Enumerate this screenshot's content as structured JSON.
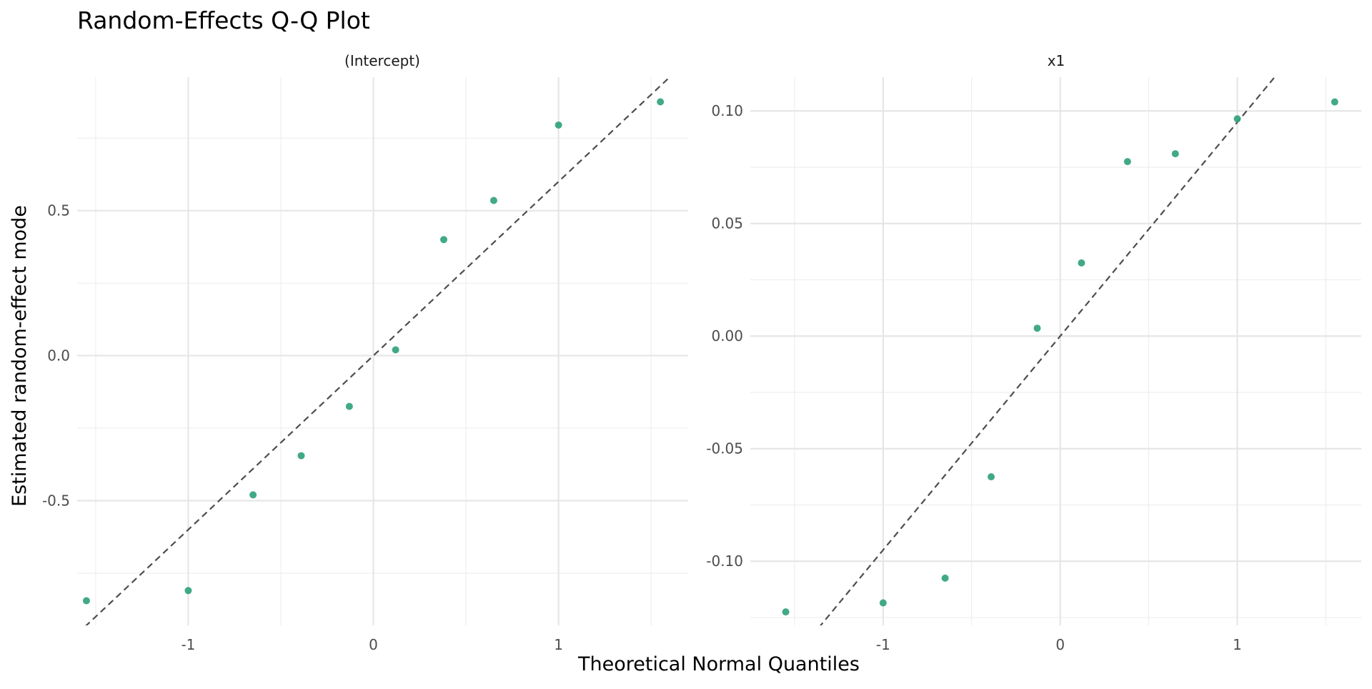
{
  "chart_data": {
    "type": "scatter",
    "title": "Random-Effects Q-Q Plot",
    "xlabel": "Theoretical Normal Quantiles",
    "ylabel": "Estimated random-effect mode",
    "point_color": "#2ca07a",
    "reference_line_color": "#4d4d4d",
    "panels": [
      {
        "name": "(Intercept)",
        "xlim": [
          -1.6,
          1.7
        ],
        "ylim": [
          -0.93,
          0.96
        ],
        "x_ticks": [
          -1,
          0,
          1
        ],
        "x_tick_labels": [
          "-1",
          "0",
          "1"
        ],
        "y_ticks": [
          -0.5,
          0.0,
          0.5
        ],
        "y_tick_labels": [
          "-0.5",
          "0.0",
          "0.5"
        ],
        "x": [
          -1.55,
          -1.0,
          -0.65,
          -0.39,
          -0.13,
          0.12,
          0.38,
          0.65,
          1.0,
          1.55
        ],
        "y": [
          -0.845,
          -0.81,
          -0.48,
          -0.345,
          -0.175,
          0.02,
          0.4,
          0.535,
          0.795,
          0.875
        ],
        "reference_line": {
          "intercept": 0.0,
          "slope": 0.6
        }
      },
      {
        "name": "x1",
        "xlim": [
          -1.75,
          1.7
        ],
        "ylim": [
          -0.1285,
          0.115
        ],
        "x_ticks": [
          -1,
          0,
          1
        ],
        "x_tick_labels": [
          "-1",
          "0",
          "1"
        ],
        "y_ticks": [
          -0.1,
          -0.05,
          0.0,
          0.05,
          0.1
        ],
        "y_tick_labels": [
          "-0.10",
          "-0.05",
          "0.00",
          "0.05",
          "0.10"
        ],
        "x": [
          -1.55,
          -1.0,
          -0.65,
          -0.39,
          -0.13,
          0.12,
          0.38,
          0.65,
          1.0,
          1.55
        ],
        "y": [
          -0.1225,
          -0.1185,
          -0.1075,
          -0.0625,
          0.0035,
          0.0325,
          0.0775,
          0.081,
          0.0965,
          0.104
        ],
        "reference_line": {
          "intercept": 0.0,
          "slope": 0.095
        }
      }
    ]
  }
}
